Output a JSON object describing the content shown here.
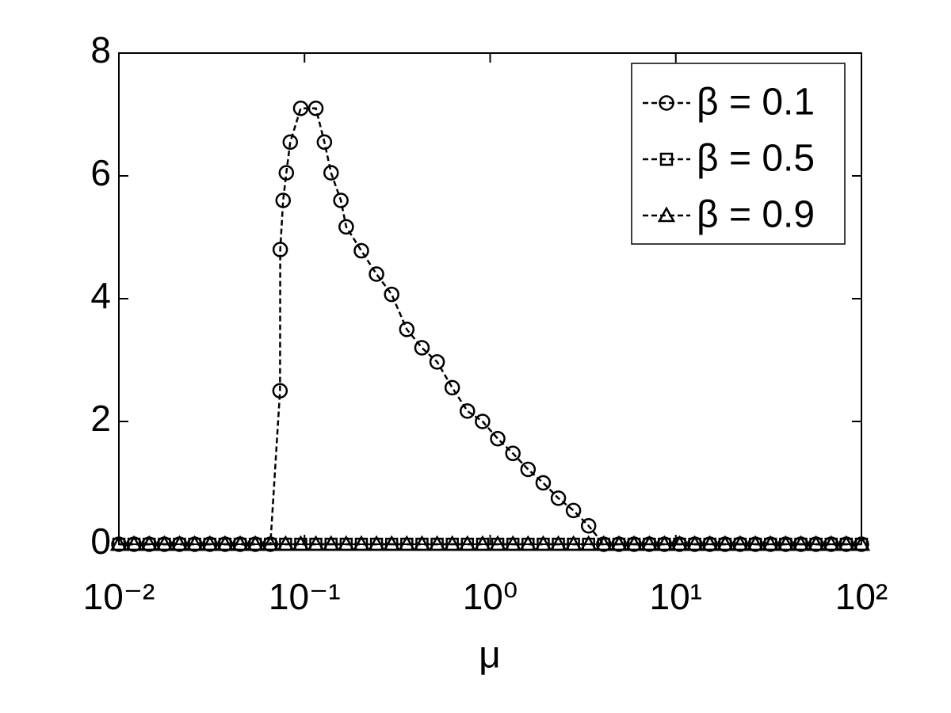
{
  "chart_data": {
    "type": "line",
    "xlabel": "μ",
    "xscale": "log",
    "xlim": [
      0.01,
      100
    ],
    "xticks": [
      {
        "value": 0.01,
        "label": "10⁻²"
      },
      {
        "value": 0.1,
        "label": "10⁻¹"
      },
      {
        "value": 1,
        "label": "10⁰"
      },
      {
        "value": 10,
        "label": "10¹"
      },
      {
        "value": 100,
        "label": "10²"
      }
    ],
    "ylim": [
      0,
      8
    ],
    "yticks": [
      0,
      2,
      4,
      6,
      8
    ],
    "grid": false,
    "legend": "upper right",
    "series": [
      {
        "name": "β = 0.1",
        "color": "#000000",
        "marker": "circle",
        "x": [
          0.01,
          0.01207,
          0.01456,
          0.01758,
          0.02121,
          0.0256,
          0.0309,
          0.0373,
          0.045,
          0.0543,
          0.0655,
          0.0738,
          0.074,
          0.0767,
          0.0798,
          0.0838,
          0.0954,
          0.1151,
          0.128,
          0.139,
          0.157,
          0.1677,
          0.2024,
          0.2442,
          0.2947,
          0.3556,
          0.4292,
          0.518,
          0.625,
          0.754,
          0.91,
          1.0985,
          1.326,
          1.6,
          1.931,
          2.33,
          2.81,
          3.39,
          4.09,
          4.94,
          5.96,
          7.2,
          8.68,
          10.48,
          12.65,
          15.26,
          18.42,
          22.23,
          26.83,
          32.37,
          39.07,
          47.15,
          56.9,
          68.66,
          82.86,
          100
        ],
        "values": [
          0,
          0,
          0,
          0,
          0,
          0,
          0,
          0,
          0,
          0,
          0,
          2.5,
          4.8,
          5.6,
          6.05,
          6.55,
          7.1,
          7.1,
          6.55,
          6.05,
          5.6,
          5.17,
          4.78,
          4.4,
          4.07,
          3.5,
          3.2,
          2.97,
          2.55,
          2.17,
          2.0,
          1.72,
          1.48,
          1.22,
          1.0,
          0.75,
          0.55,
          0.3,
          0,
          0,
          0,
          0,
          0,
          0,
          0,
          0,
          0,
          0,
          0,
          0,
          0,
          0,
          0,
          0,
          0,
          0
        ]
      },
      {
        "name": "β = 0.5",
        "color": "#000000",
        "marker": "square",
        "x": [
          0.01,
          0.01207,
          0.01456,
          0.01758,
          0.02121,
          0.0256,
          0.0309,
          0.0373,
          0.045,
          0.0543,
          0.0655,
          0.0791,
          0.0954,
          0.1151,
          0.139,
          0.1677,
          0.2024,
          0.2442,
          0.2947,
          0.3556,
          0.4292,
          0.518,
          0.625,
          0.754,
          0.91,
          1.0985,
          1.326,
          1.6,
          1.931,
          2.33,
          2.81,
          3.39,
          4.09,
          4.94,
          5.96,
          7.2,
          8.68,
          10.48,
          12.65,
          15.26,
          18.42,
          22.23,
          26.83,
          32.37,
          39.07,
          47.15,
          56.9,
          68.66,
          82.86,
          100
        ],
        "values": [
          0,
          0,
          0,
          0,
          0,
          0,
          0,
          0,
          0,
          0,
          0,
          0,
          0,
          0,
          0,
          0,
          0,
          0,
          0,
          0,
          0,
          0,
          0,
          0,
          0,
          0,
          0,
          0,
          0,
          0,
          0,
          0,
          0,
          0,
          0,
          0,
          0,
          0,
          0,
          0,
          0,
          0,
          0,
          0,
          0,
          0,
          0,
          0,
          0,
          0
        ]
      },
      {
        "name": "β = 0.9",
        "color": "#000000",
        "marker": "triangle",
        "x": [
          0.01,
          0.01207,
          0.01456,
          0.01758,
          0.02121,
          0.0256,
          0.0309,
          0.0373,
          0.045,
          0.0543,
          0.0655,
          0.0791,
          0.0954,
          0.1151,
          0.139,
          0.1677,
          0.2024,
          0.2442,
          0.2947,
          0.3556,
          0.4292,
          0.518,
          0.625,
          0.754,
          0.91,
          1.0985,
          1.326,
          1.6,
          1.931,
          2.33,
          2.81,
          3.39,
          4.09,
          4.94,
          5.96,
          7.2,
          8.68,
          10.48,
          12.65,
          15.26,
          18.42,
          22.23,
          26.83,
          32.37,
          39.07,
          47.15,
          56.9,
          68.66,
          82.86,
          100
        ],
        "values": [
          0,
          0,
          0,
          0,
          0,
          0,
          0,
          0,
          0,
          0,
          0,
          0,
          0,
          0,
          0,
          0,
          0,
          0,
          0,
          0,
          0,
          0,
          0,
          0,
          0,
          0,
          0,
          0,
          0,
          0,
          0,
          0,
          0,
          0,
          0,
          0,
          0,
          0,
          0,
          0,
          0,
          0,
          0,
          0,
          0,
          0,
          0,
          0,
          0,
          0
        ]
      }
    ]
  }
}
